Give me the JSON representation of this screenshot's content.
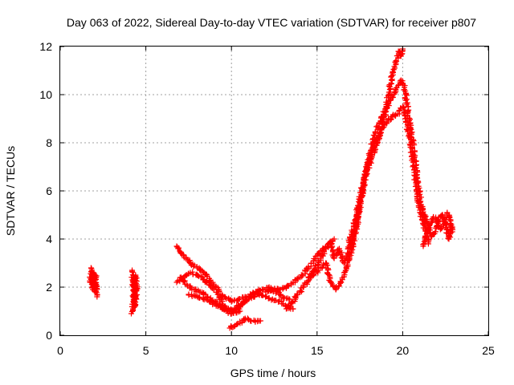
{
  "chart_data": {
    "type": "scatter",
    "title": "Day 063 of 2022, Sidereal Day-to-day VTEC variation (SDTVAR) for receiver p807",
    "xlabel": "GPS time / hours",
    "ylabel": "SDTVAR / TECUs",
    "xlim": [
      0,
      25
    ],
    "ylim": [
      0,
      12
    ],
    "xticks": [
      "0",
      "5",
      "10",
      "15",
      "20",
      "25"
    ],
    "yticks": [
      "0",
      "2",
      "4",
      "6",
      "8",
      "10",
      "12"
    ],
    "grid": true,
    "marker": "+",
    "color": "#ff0000",
    "series": [
      {
        "name": "p807",
        "segments": [
          {
            "x": [
              1.8,
              1.85,
              1.9,
              1.95,
              2.0,
              2.05,
              2.1
            ],
            "y": [
              2.8,
              2.3,
              1.9,
              2.6,
              2.1,
              1.8,
              2.4
            ]
          },
          {
            "x": [
              1.75,
              1.85,
              1.95,
              2.05,
              2.15
            ],
            "y": [
              2.2,
              2.7,
              2.0,
              2.5,
              1.6
            ]
          },
          {
            "x": [
              4.2,
              4.25,
              4.3,
              4.35,
              4.4,
              4.45
            ],
            "y": [
              2.7,
              2.2,
              1.7,
              1.2,
              2.5,
              1.9
            ]
          },
          {
            "x": [
              4.15,
              4.25,
              4.35,
              4.45
            ],
            "y": [
              0.9,
              1.1,
              2.4,
              1.5
            ]
          },
          {
            "x": [
              6.8,
              7.2,
              7.6,
              8.0,
              8.4,
              8.8,
              9.2,
              9.6,
              10.0,
              10.4,
              10.8,
              11.2,
              11.6,
              12.0,
              12.4,
              12.8,
              13.2,
              13.6
            ],
            "y": [
              3.7,
              3.3,
              3.0,
              2.8,
              2.6,
              2.2,
              1.9,
              1.6,
              1.4,
              1.5,
              1.6,
              1.7,
              1.7,
              1.6,
              1.5,
              1.4,
              1.2,
              1.1
            ]
          },
          {
            "x": [
              6.8,
              7.2,
              7.6,
              8.0,
              8.4,
              8.8,
              9.2,
              9.6,
              10.0,
              10.4,
              10.8,
              11.2,
              11.6
            ],
            "y": [
              2.2,
              2.4,
              2.6,
              2.5,
              2.3,
              2.0,
              1.7,
              1.2,
              1.0,
              1.1,
              1.4,
              1.7,
              1.9
            ]
          },
          {
            "x": [
              7.0,
              7.4,
              7.8,
              8.2,
              8.6,
              9.0,
              9.4,
              9.8,
              10.2,
              10.6,
              11.0,
              11.4,
              11.8,
              12.2,
              12.6,
              13.0,
              13.4
            ],
            "y": [
              2.4,
              2.1,
              1.9,
              1.8,
              1.6,
              1.4,
              1.2,
              1.0,
              1.1,
              1.3,
              1.5,
              1.7,
              1.9,
              2.0,
              1.8,
              1.6,
              1.5
            ]
          },
          {
            "x": [
              7.5,
              8.0,
              8.5,
              9.0,
              9.5,
              10.0,
              10.5
            ],
            "y": [
              1.7,
              1.6,
              1.5,
              1.3,
              1.1,
              0.9,
              1.0
            ]
          },
          {
            "x": [
              9.9,
              10.2,
              10.5,
              10.8,
              11.1,
              11.4,
              11.7
            ],
            "y": [
              0.3,
              0.4,
              0.5,
              0.7,
              0.6,
              0.6,
              0.6
            ]
          },
          {
            "x": [
              12.0,
              12.4,
              12.8,
              13.2,
              13.6,
              14.0,
              14.4,
              14.8,
              15.2,
              15.6,
              16.0
            ],
            "y": [
              1.8,
              1.9,
              1.9,
              2.0,
              2.2,
              2.4,
              2.7,
              3.1,
              3.5,
              3.7,
              4.0
            ]
          },
          {
            "x": [
              13.2,
              13.6,
              14.0,
              14.4,
              14.8,
              15.2,
              15.5,
              15.8,
              16.1,
              16.4,
              16.7,
              17.0,
              17.3,
              17.6,
              17.9,
              18.2,
              18.5,
              18.8,
              19.1,
              19.4,
              19.7,
              20.0,
              20.2,
              20.4,
              20.6,
              20.8,
              21.0,
              21.2
            ],
            "y": [
              1.1,
              1.4,
              1.8,
              2.2,
              2.5,
              2.8,
              3.0,
              2.2,
              1.9,
              2.2,
              2.8,
              3.5,
              4.5,
              5.8,
              6.9,
              7.6,
              8.2,
              8.6,
              8.9,
              9.1,
              9.2,
              9.5,
              9.0,
              8.2,
              7.2,
              6.2,
              5.2,
              4.6
            ]
          },
          {
            "x": [
              14.5,
              14.9,
              15.2,
              15.5,
              15.8,
              16.0,
              16.3,
              16.6,
              16.9,
              17.2,
              17.5,
              17.8,
              18.1,
              18.4,
              18.7,
              19.0,
              19.3,
              19.6,
              19.9,
              20.1,
              20.3,
              20.5,
              20.7,
              20.9,
              21.1,
              21.3,
              21.5
            ],
            "y": [
              2.4,
              2.8,
              3.2,
              3.6,
              3.9,
              3.2,
              3.6,
              3.0,
              3.6,
              4.3,
              5.4,
              6.6,
              7.6,
              8.4,
              8.9,
              9.4,
              9.8,
              10.2,
              10.6,
              10.3,
              9.3,
              8.4,
              7.4,
              6.4,
              5.3,
              4.4,
              3.8
            ]
          },
          {
            "x": [
              16.8,
              17.0,
              17.3,
              17.6,
              17.9,
              18.2,
              18.5,
              18.8,
              19.0,
              19.2,
              19.4,
              19.6,
              19.75,
              19.9,
              20.0
            ],
            "y": [
              3.6,
              4.2,
              5.0,
              6.1,
              6.8,
              7.4,
              8.0,
              8.6,
              9.3,
              10.1,
              10.9,
              11.3,
              11.8,
              11.6,
              11.9
            ]
          },
          {
            "x": [
              21.2,
              21.4,
              21.6,
              21.8,
              22.0,
              22.2,
              22.4,
              22.6,
              22.8,
              22.9
            ],
            "y": [
              3.7,
              4.2,
              4.6,
              4.9,
              4.8,
              4.4,
              4.6,
              5.1,
              4.8,
              4.3
            ]
          },
          {
            "x": [
              21.3,
              21.5,
              21.7,
              21.9,
              22.1,
              22.3,
              22.5,
              22.7,
              22.9
            ],
            "y": [
              5.0,
              4.5,
              4.1,
              4.3,
              4.9,
              5.0,
              4.7,
              4.0,
              4.5
            ]
          }
        ]
      }
    ]
  }
}
